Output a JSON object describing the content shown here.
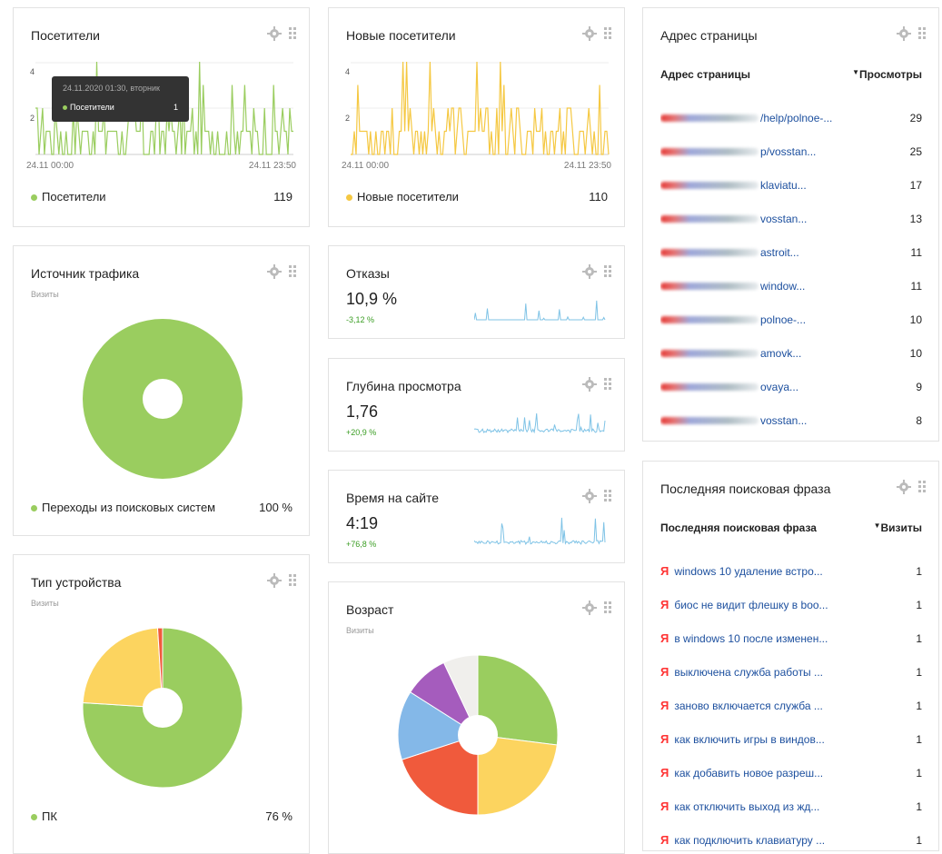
{
  "colors": {
    "green": "#9acd5f",
    "yellow": "#f5c842",
    "spark": "#7fc3e6",
    "red": "#f05a3c",
    "blue": "#84b8e8",
    "purple": "#a55cbd",
    "gray": "#f0efec",
    "paleyellow": "#fcd45f"
  },
  "visitors": {
    "title": "Посетители",
    "y_tick_high": "4",
    "y_tick_low": "2",
    "x_start": "24.11 00:00",
    "x_end": "24.11 23:50",
    "legend": "Посетители",
    "value": "119",
    "tooltip": {
      "date": "24.11.2020 01:30, вторник",
      "series": "Посетители",
      "value": "1"
    }
  },
  "new_visitors": {
    "title": "Новые посетители",
    "y_tick_high": "4",
    "y_tick_low": "2",
    "x_start": "24.11 00:00",
    "x_end": "24.11 23:50",
    "legend": "Новые посетители",
    "value": "110"
  },
  "traffic": {
    "title": "Источник трафика",
    "subtitle": "Визиты",
    "legend": "Переходы из поисковых систем",
    "value": "100 %"
  },
  "device": {
    "title": "Тип устройства",
    "subtitle": "Визиты",
    "legend": "ПК",
    "value": "76 %",
    "pc_share": 76,
    "mobile_share": 23,
    "tablet_share": 1
  },
  "bounce": {
    "title": "Отказы",
    "value": "10,9 %",
    "delta": "-3,12 %"
  },
  "depth": {
    "title": "Глубина просмотра",
    "value": "1,76",
    "delta": "+20,9 %"
  },
  "time": {
    "title": "Время на сайте",
    "value": "4:19",
    "delta": "+76,8 %"
  },
  "age": {
    "title": "Возраст",
    "subtitle": "Визиты",
    "slices": [
      27,
      23,
      20,
      14,
      9,
      7
    ]
  },
  "pages": {
    "title": "Адрес страницы",
    "col1": "Адрес страницы",
    "col2": "Просмотры",
    "sort_icon": "sort-desc-icon",
    "rows": [
      {
        "url": "/help/polnoe-...",
        "v": "29"
      },
      {
        "url": "p/vosstan...",
        "v": "25"
      },
      {
        "url": "klaviatu...",
        "v": "17"
      },
      {
        "url": "vosstan...",
        "v": "13"
      },
      {
        "url": "astroit...",
        "v": "11"
      },
      {
        "url": "window...",
        "v": "11"
      },
      {
        "url": "polnoe-...",
        "v": "10"
      },
      {
        "url": "amovk...",
        "v": "10"
      },
      {
        "url": "ovaya...",
        "v": "9"
      },
      {
        "url": "vosstan...",
        "v": "8"
      }
    ]
  },
  "search": {
    "title": "Последняя поисковая фраза",
    "col1": "Последняя поисковая фраза",
    "col2": "Визиты",
    "ya": "Я",
    "rows": [
      {
        "q": "windows 10 удаление встро...",
        "v": "1"
      },
      {
        "q": "биос не видит флешку в boo...",
        "v": "1"
      },
      {
        "q": "в windows 10 после изменен...",
        "v": "1"
      },
      {
        "q": "выключена служба работы ...",
        "v": "1"
      },
      {
        "q": "заново включается служба ...",
        "v": "1"
      },
      {
        "q": "как включить игры в виндов...",
        "v": "1"
      },
      {
        "q": "как добавить новое разреш...",
        "v": "1"
      },
      {
        "q": "как отключить выход из жд...",
        "v": "1"
      },
      {
        "q": "как подключить клавиатуру ...",
        "v": "1"
      }
    ]
  }
}
